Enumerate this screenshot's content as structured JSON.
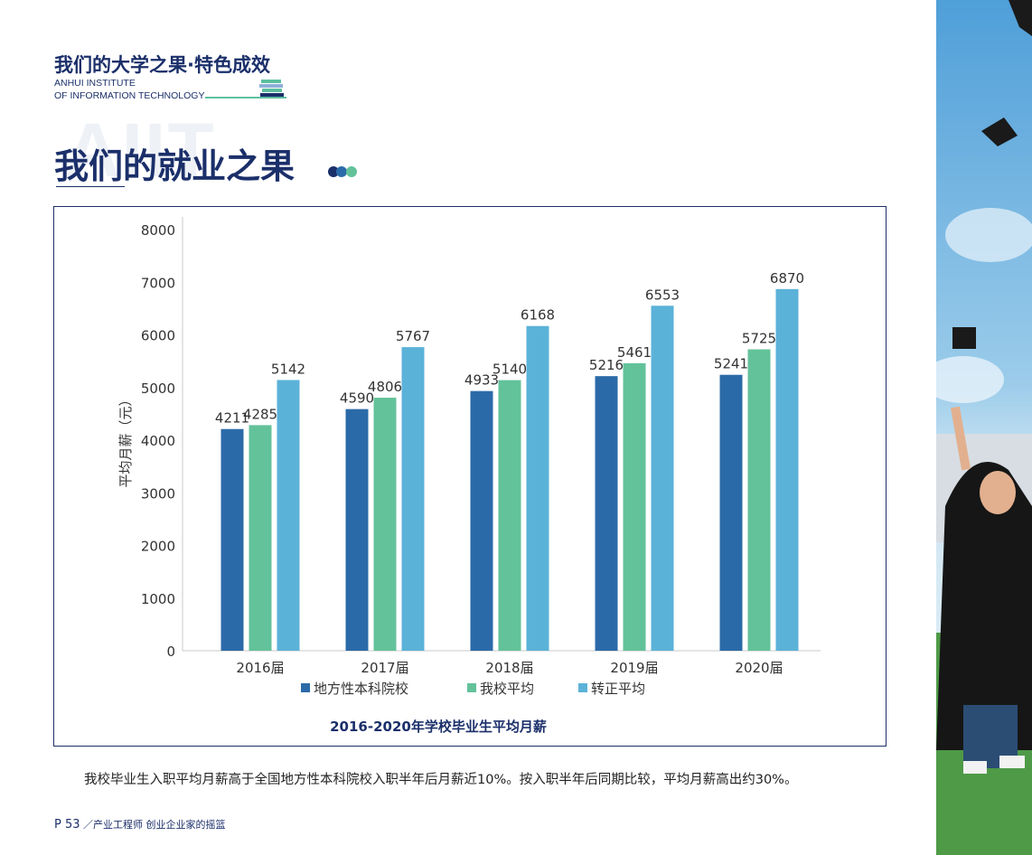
{
  "header": {
    "title": "我们的大学之果·特色成效",
    "subtitle_line1": "ANHUI INSTITUTE",
    "subtitle_line2": "OF INFORMATION TECHNOLOGY"
  },
  "watermark": "AIIT",
  "page_title": "我们的就业之果",
  "chart_data": {
    "type": "bar",
    "title": "2016-2020年学校毕业生平均月薪",
    "ylabel": "平均月薪（元）",
    "xlabel": "",
    "categories": [
      "2016届",
      "2017届",
      "2018届",
      "2019届",
      "2020届"
    ],
    "ylim": [
      0,
      8000
    ],
    "yticks": [
      0,
      1000,
      2000,
      3000,
      4000,
      5000,
      6000,
      7000,
      8000
    ],
    "grid": false,
    "legend_position": "bottom",
    "series": [
      {
        "name": "地方性本科院校",
        "color": "#2b6aa8",
        "values": [
          4211,
          4590,
          4933,
          5216,
          5241
        ]
      },
      {
        "name": "我校平均",
        "color": "#63c29a",
        "values": [
          4285,
          4806,
          5140,
          5461,
          5725
        ]
      },
      {
        "name": "转正平均",
        "color": "#5bb2d8",
        "values": [
          5142,
          5767,
          6168,
          6553,
          6870
        ]
      }
    ]
  },
  "caption": "我校毕业生入职平均月薪高于全国地方性本科院校入职半年后月薪近10%。按入职半年后同期比较，平均月薪高出约30%。",
  "footer": {
    "page": "P 53",
    "text": "／产业工程师 创业企业家的摇篮"
  }
}
